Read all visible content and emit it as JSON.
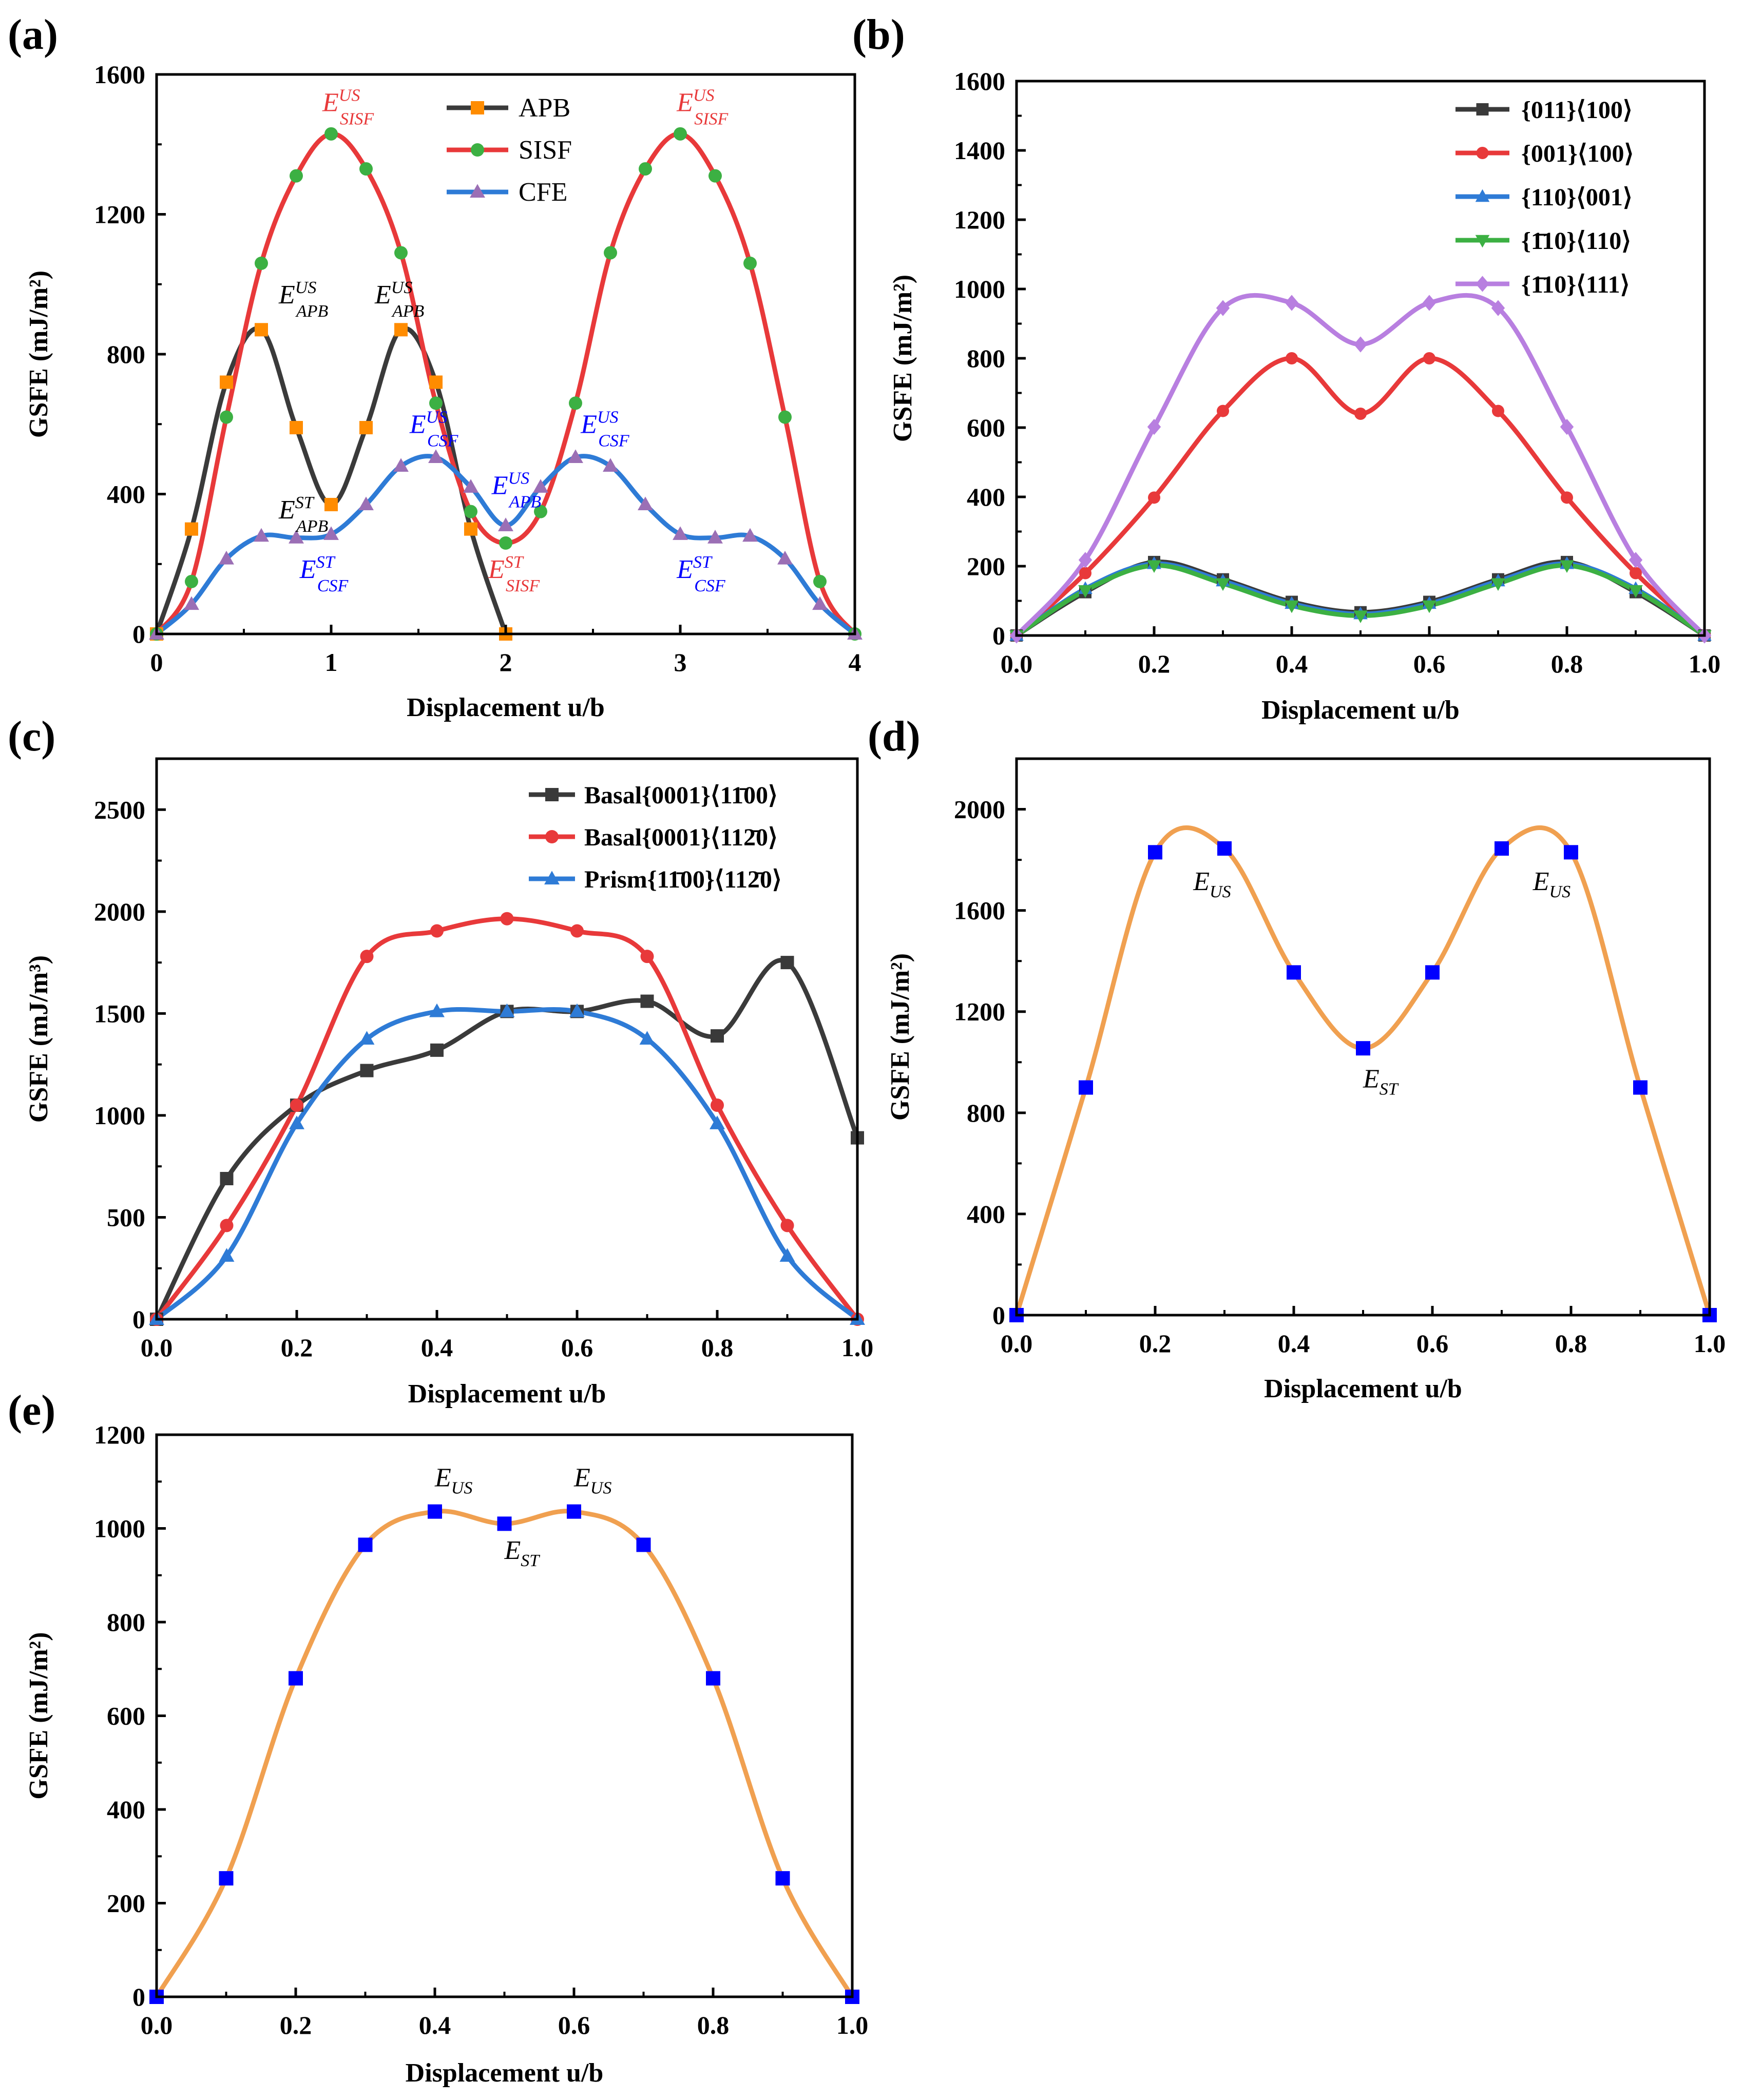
{
  "chart_data": [
    {
      "id": "a",
      "panel_label": "(a)",
      "type": "line",
      "xlabel": "Displacement  u/b",
      "ylabel": "GSFE (mJ/m²)",
      "xlim": [
        0,
        4
      ],
      "ylim": [
        0,
        1600
      ],
      "xticks": [
        0,
        1,
        2,
        3,
        4
      ],
      "yticks": [
        0,
        400,
        800,
        1200,
        1600
      ],
      "xtick_labels": [
        "0",
        "1",
        "2",
        "3",
        "4"
      ],
      "ytick_labels": [
        "0",
        "400",
        "800",
        "1200",
        "1600"
      ],
      "legend_position": "top-center",
      "series": [
        {
          "name": "APB",
          "line_color": "#3a3a3a",
          "marker_color": "#ff8c00",
          "marker": "square",
          "x": [
            0,
            0.2,
            0.4,
            0.6,
            0.8,
            1.0,
            1.2,
            1.4,
            1.6,
            1.8,
            2.0
          ],
          "y": [
            0,
            300,
            720,
            870,
            590,
            370,
            590,
            870,
            720,
            300,
            0
          ]
        },
        {
          "name": "SISF",
          "line_color": "#e8393a",
          "marker_color": "#3cb043",
          "marker": "circle",
          "x": [
            0,
            0.2,
            0.4,
            0.6,
            0.8,
            1.0,
            1.2,
            1.4,
            1.6,
            1.8,
            2.0,
            2.2,
            2.4,
            2.6,
            2.8,
            3.0,
            3.2,
            3.4,
            3.6,
            3.8,
            4.0
          ],
          "y": [
            0,
            150,
            620,
            1060,
            1310,
            1430,
            1330,
            1090,
            660,
            350,
            260,
            350,
            660,
            1090,
            1330,
            1430,
            1310,
            1060,
            620,
            150,
            0
          ]
        },
        {
          "name": "CFE",
          "line_color": "#2e7bd6",
          "marker_color": "#9b6fb5",
          "marker": "triangle",
          "x": [
            0,
            0.2,
            0.4,
            0.6,
            0.8,
            1.0,
            1.2,
            1.4,
            1.6,
            1.8,
            2.0,
            2.2,
            2.4,
            2.6,
            2.8,
            3.0,
            3.2,
            3.4,
            3.6,
            3.8,
            4.0
          ],
          "y": [
            0,
            85,
            215,
            280,
            275,
            285,
            370,
            480,
            505,
            420,
            310,
            420,
            505,
            480,
            370,
            285,
            275,
            280,
            215,
            85,
            0
          ]
        }
      ],
      "annotations": [
        {
          "base": "E",
          "sup": "US",
          "sub": "SISF",
          "color": "#e8393a",
          "x": 0.95,
          "y": 1495
        },
        {
          "base": "E",
          "sup": "US",
          "sub": "SISF",
          "color": "#e8393a",
          "x": 2.98,
          "y": 1495
        },
        {
          "base": "E",
          "sup": "US",
          "sub": "APB",
          "color": "#000000",
          "x": 0.7,
          "y": 945
        },
        {
          "base": "E",
          "sup": "US",
          "sub": "APB",
          "color": "#000000",
          "x": 1.25,
          "y": 945
        },
        {
          "base": "E",
          "sup": "US",
          "sub": "CSF",
          "color": "#0000ff",
          "x": 1.45,
          "y": 575
        },
        {
          "base": "E",
          "sup": "US",
          "sub": "CSF",
          "color": "#0000ff",
          "x": 2.43,
          "y": 575
        },
        {
          "base": "E",
          "sup": "ST",
          "sub": "APB",
          "color": "#000000",
          "x": 0.7,
          "y": 330
        },
        {
          "base": "E",
          "sup": "US",
          "sub": "APB",
          "color": "#0000ff",
          "x": 1.92,
          "y": 400
        },
        {
          "base": "E",
          "sup": "ST",
          "sub": "CSF",
          "color": "#0000ff",
          "x": 0.82,
          "y": 160
        },
        {
          "base": "E",
          "sup": "ST",
          "sub": "SISF",
          "color": "#e8393a",
          "x": 1.9,
          "y": 160
        },
        {
          "base": "E",
          "sup": "ST",
          "sub": "CSF",
          "color": "#0000ff",
          "x": 2.98,
          "y": 160
        }
      ]
    },
    {
      "id": "b",
      "panel_label": "(b)",
      "type": "line",
      "xlabel": "Displacement  u/b",
      "ylabel": "GSFE  (mJ/m²)",
      "xlim": [
        0,
        1
      ],
      "ylim": [
        0,
        1600
      ],
      "xticks": [
        0,
        0.2,
        0.4,
        0.6,
        0.8,
        1.0
      ],
      "yticks": [
        0,
        200,
        400,
        600,
        800,
        1000,
        1200,
        1400,
        1600
      ],
      "xtick_labels": [
        "0.0",
        "0.2",
        "0.4",
        "0.6",
        "0.8",
        "1.0"
      ],
      "ytick_labels": [
        "0",
        "200",
        "400",
        "600",
        "800",
        "1000",
        "1200",
        "1400",
        "1600"
      ],
      "legend_position": "top-right",
      "series": [
        {
          "name": "{011}⟨100⟩",
          "line_color": "#3a3a3a",
          "marker_color": "#3a3a3a",
          "marker": "square",
          "x": [
            0,
            0.1,
            0.2,
            0.3,
            0.4,
            0.5,
            0.6,
            0.7,
            0.8,
            0.9,
            1.0
          ],
          "y": [
            0,
            125,
            212,
            162,
            97,
            67,
            97,
            162,
            212,
            125,
            0
          ]
        },
        {
          "name": "{001}⟨100⟩",
          "line_color": "#e8393a",
          "marker_color": "#e8393a",
          "marker": "circle",
          "x": [
            0,
            0.1,
            0.2,
            0.3,
            0.4,
            0.5,
            0.6,
            0.7,
            0.8,
            0.9,
            1.0
          ],
          "y": [
            0,
            180,
            398,
            648,
            800,
            640,
            800,
            648,
            398,
            180,
            0
          ]
        },
        {
          "name": "{110}⟨001⟩",
          "line_color": "#2e7bd6",
          "marker_color": "#2e7bd6",
          "marker": "triangle",
          "x": [
            0,
            0.1,
            0.2,
            0.3,
            0.4,
            0.5,
            0.6,
            0.7,
            0.8,
            0.9,
            1.0
          ],
          "y": [
            0,
            135,
            207,
            157,
            92,
            62,
            92,
            157,
            207,
            135,
            0
          ]
        },
        {
          "name": "{1̄10}⟨110⟩",
          "line_color": "#3cb043",
          "marker_color": "#3cb043",
          "marker": "triangle-down",
          "x": [
            0,
            0.1,
            0.2,
            0.3,
            0.4,
            0.5,
            0.6,
            0.7,
            0.8,
            0.9,
            1.0
          ],
          "y": [
            0,
            130,
            202,
            150,
            86,
            57,
            86,
            150,
            202,
            130,
            0
          ]
        },
        {
          "name": "{1̄10}⟨111⟩",
          "line_color": "#b87fe0",
          "marker_color": "#b87fe0",
          "marker": "diamond",
          "x": [
            0,
            0.1,
            0.2,
            0.3,
            0.4,
            0.5,
            0.6,
            0.7,
            0.8,
            0.9,
            1.0
          ],
          "y": [
            0,
            218,
            602,
            945,
            960,
            840,
            960,
            945,
            602,
            218,
            0
          ]
        }
      ]
    },
    {
      "id": "c",
      "panel_label": "(c)",
      "type": "line",
      "xlabel": "Displacement  u/b",
      "ylabel": "GSFE  (mJ/m³)",
      "xlim": [
        0,
        1
      ],
      "ylim": [
        0,
        2750
      ],
      "xticks": [
        0,
        0.2,
        0.4,
        0.6,
        0.8,
        1.0
      ],
      "yticks": [
        0,
        500,
        1000,
        1500,
        2000,
        2500
      ],
      "xtick_labels": [
        "0.0",
        "0.2",
        "0.4",
        "0.6",
        "0.8",
        "1.0"
      ],
      "ytick_labels": [
        "0",
        "500",
        "1000",
        "1500",
        "2000",
        "2500"
      ],
      "legend_position": "top-right",
      "series": [
        {
          "name": "Basal{0001}⟨11̄00⟩",
          "line_color": "#3a3a3a",
          "marker_color": "#3a3a3a",
          "marker": "square",
          "x": [
            0,
            0.1,
            0.2,
            0.3,
            0.4,
            0.5,
            0.6,
            0.7,
            0.8,
            0.9,
            1.0
          ],
          "y": [
            0,
            690,
            1050,
            1220,
            1320,
            1510,
            1510,
            1560,
            1390,
            1750,
            890
          ]
        },
        {
          "name": "Basal{0001}⟨112̄0⟩",
          "line_color": "#e8393a",
          "marker_color": "#e8393a",
          "marker": "circle",
          "x": [
            0,
            0.1,
            0.2,
            0.3,
            0.4,
            0.5,
            0.6,
            0.7,
            0.8,
            0.9,
            1.0
          ],
          "y": [
            0,
            460,
            1050,
            1780,
            1905,
            1965,
            1905,
            1780,
            1050,
            460,
            0
          ]
        },
        {
          "name": "Prism{11̄00}⟨112̄0⟩",
          "line_color": "#2e7bd6",
          "marker_color": "#2e7bd6",
          "marker": "triangle",
          "x": [
            0,
            0.1,
            0.2,
            0.3,
            0.4,
            0.5,
            0.6,
            0.7,
            0.8,
            0.9,
            1.0
          ],
          "y": [
            0,
            310,
            960,
            1375,
            1510,
            1510,
            1510,
            1375,
            960,
            310,
            0
          ]
        }
      ]
    },
    {
      "id": "d",
      "panel_label": "(d)",
      "type": "line",
      "xlabel": "Displacement  u/b",
      "ylabel": "GSFE  (mJ/m²)",
      "xlim": [
        0,
        1
      ],
      "ylim": [
        0,
        2200
      ],
      "xticks": [
        0,
        0.2,
        0.4,
        0.6,
        0.8,
        1.0
      ],
      "yticks": [
        0,
        400,
        800,
        1200,
        1600,
        2000
      ],
      "xtick_labels": [
        "0.0",
        "0.2",
        "0.4",
        "0.6",
        "0.8",
        "1.0"
      ],
      "ytick_labels": [
        "0",
        "400",
        "800",
        "1200",
        "1600",
        "2000"
      ],
      "series": [
        {
          "name": "GSFE",
          "line_color": "#f0a050",
          "marker_color": "#0000ff",
          "marker": "square",
          "x": [
            0,
            0.1,
            0.2,
            0.3,
            0.4,
            0.5,
            0.6,
            0.7,
            0.8,
            0.9,
            1.0
          ],
          "y": [
            0,
            900,
            1830,
            1845,
            1355,
            1055,
            1355,
            1845,
            1830,
            900,
            0
          ]
        }
      ],
      "annotations": [
        {
          "base": "E",
          "sub": "US",
          "color": "#000000",
          "x": 0.255,
          "y": 1680
        },
        {
          "base": "E",
          "sub": "US",
          "color": "#000000",
          "x": 0.745,
          "y": 1680
        },
        {
          "base": "E",
          "sub": "ST",
          "color": "#000000",
          "x": 0.5,
          "y": 900
        }
      ]
    },
    {
      "id": "e",
      "panel_label": "(e)",
      "type": "line",
      "xlabel": "Displacement  u/b",
      "ylabel": "GSFE  (mJ/m²)",
      "xlim": [
        0,
        1
      ],
      "ylim": [
        0,
        1200
      ],
      "xticks": [
        0,
        0.2,
        0.4,
        0.6,
        0.8,
        1.0
      ],
      "yticks": [
        0,
        200,
        400,
        600,
        800,
        1000,
        1200
      ],
      "xtick_labels": [
        "0.0",
        "0.2",
        "0.4",
        "0.6",
        "0.8",
        "1.0"
      ],
      "ytick_labels": [
        "0",
        "200",
        "400",
        "600",
        "800",
        "1000",
        "1200"
      ],
      "series": [
        {
          "name": "GSFE",
          "line_color": "#f0a050",
          "marker_color": "#0000ff",
          "marker": "square",
          "x": [
            0,
            0.1,
            0.2,
            0.3,
            0.4,
            0.5,
            0.6,
            0.7,
            0.8,
            0.9,
            1.0
          ],
          "y": [
            0,
            253,
            680,
            965,
            1036,
            1010,
            1036,
            965,
            680,
            253,
            0
          ]
        }
      ],
      "annotations": [
        {
          "base": "E",
          "sub": "US",
          "color": "#000000",
          "x": 0.4,
          "y": 1090
        },
        {
          "base": "E",
          "sub": "US",
          "color": "#000000",
          "x": 0.6,
          "y": 1090
        },
        {
          "base": "E",
          "sub": "ST",
          "color": "#000000",
          "x": 0.5,
          "y": 935
        }
      ]
    }
  ]
}
